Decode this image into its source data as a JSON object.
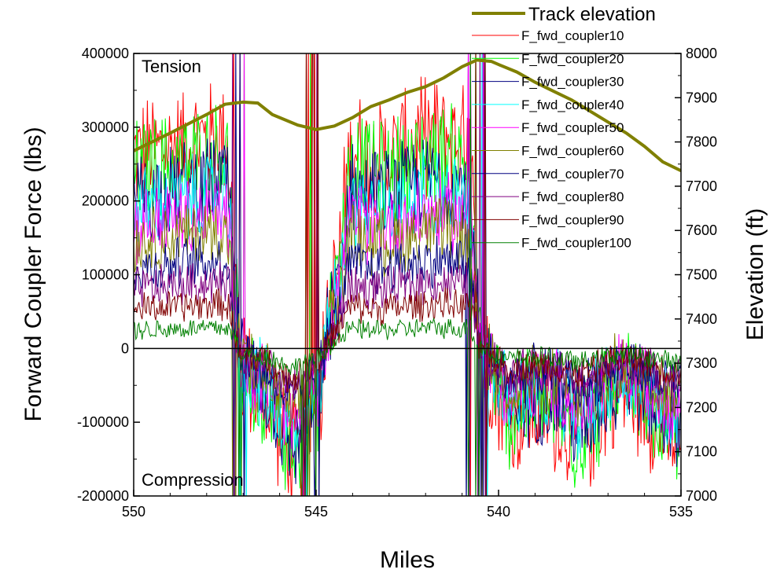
{
  "chart_data": {
    "type": "line",
    "xlabel": "Miles",
    "ylabel": "Forward Coupler Force (lbs)",
    "y2label": "Elevation (ft)",
    "xlim": [
      550,
      535
    ],
    "ylim": [
      -200000,
      400000
    ],
    "y2lim": [
      7000,
      8000
    ],
    "x_ticks": [
      "550",
      "545",
      "540",
      "535"
    ],
    "y_ticks": [
      "400000",
      "300000",
      "200000",
      "100000",
      "0",
      "-100000",
      "-200000"
    ],
    "y2_ticks": [
      "8000",
      "7900",
      "7800",
      "7700",
      "7600",
      "7500",
      "7400",
      "7300",
      "7200",
      "7100",
      "7000"
    ],
    "annotations": [
      "Tension",
      "Compression"
    ],
    "elevation_series": {
      "name": "Track elevation",
      "color": "#808000",
      "x": [
        550,
        549,
        548,
        547.5,
        547,
        546.6,
        546.2,
        545.5,
        545,
        544.5,
        544,
        543.5,
        543,
        542.5,
        542,
        541.5,
        541,
        540.6,
        540.2,
        540,
        539.5,
        539,
        538.5,
        538,
        537.5,
        537,
        536.5,
        536,
        535.5,
        535
      ],
      "y": [
        7780,
        7820,
        7862,
        7885,
        7890,
        7888,
        7862,
        7838,
        7828,
        7836,
        7855,
        7880,
        7895,
        7912,
        7925,
        7945,
        7970,
        7985,
        7982,
        7975,
        7958,
        7935,
        7915,
        7895,
        7870,
        7845,
        7820,
        7790,
        7755,
        7735
      ]
    },
    "series": [
      {
        "name": "F_fwd_coupler10",
        "color": "#ff0000",
        "tension_level": 290000,
        "comp_level_1": -150000,
        "comp_level_2": -140000
      },
      {
        "name": "F_fwd_coupler20",
        "color": "#00ff00",
        "tension_level": 265000,
        "comp_level_1": -140000,
        "comp_level_2": -125000
      },
      {
        "name": "F_fwd_coupler30",
        "color": "#000080",
        "tension_level": 230000,
        "comp_level_1": -130000,
        "comp_level_2": -110000
      },
      {
        "name": "F_fwd_coupler40",
        "color": "#00ffff",
        "tension_level": 210000,
        "comp_level_1": -115000,
        "comp_level_2": -95000
      },
      {
        "name": "F_fwd_coupler50",
        "color": "#ff00ff",
        "tension_level": 185000,
        "comp_level_1": -100000,
        "comp_level_2": -80000
      },
      {
        "name": "F_fwd_coupler60",
        "color": "#808000",
        "tension_level": 160000,
        "comp_level_1": -85000,
        "comp_level_2": -70000
      },
      {
        "name": "F_fwd_coupler70",
        "color": "#000080",
        "tension_level": 120000,
        "comp_level_1": -70000,
        "comp_level_2": -55000
      },
      {
        "name": "F_fwd_coupler80",
        "color": "#800080",
        "tension_level": 90000,
        "comp_level_1": -55000,
        "comp_level_2": -45000
      },
      {
        "name": "F_fwd_coupler90",
        "color": "#800000",
        "tension_level": 60000,
        "comp_level_1": -40000,
        "comp_level_2": -35000
      },
      {
        "name": "F_fwd_coupler100",
        "color": "#008000",
        "tension_level": 28000,
        "comp_level_1": -25000,
        "comp_level_2": -20000
      }
    ]
  }
}
